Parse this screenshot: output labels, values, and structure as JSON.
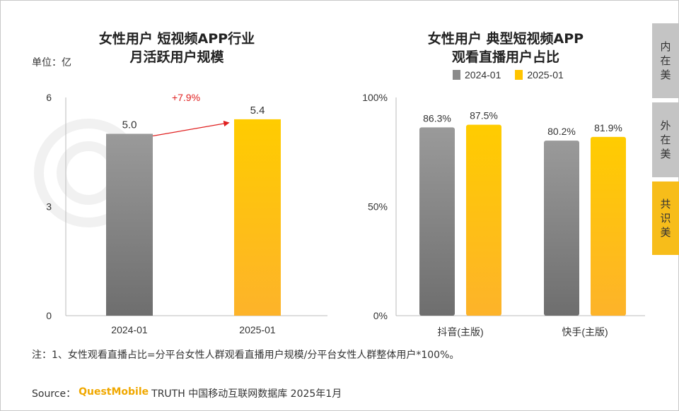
{
  "left_chart": {
    "title_line1": "女性用户 短视频APP行业",
    "title_line2": "月活跃用户规模",
    "unit": "单位：亿",
    "growth_label": "+7.9%"
  },
  "right_chart": {
    "title_line1": "女性用户 典型短视频APP",
    "title_line2": "观看直播用户占比",
    "legend": [
      "2024-01",
      "2025-01"
    ]
  },
  "side_tabs": [
    {
      "label": "内在美"
    },
    {
      "label": "外在美"
    },
    {
      "label": "共识美"
    }
  ],
  "note": "注：1、女性观看直播占比=分平台女性人群观看直播用户规模/分平台女性人群整体用户*100%。",
  "source": {
    "prefix": "Source：",
    "brand": "QuestMobile",
    "rest": "TRUTH 中国移动互联网数据库 2025年1月"
  },
  "colors": {
    "gray": "#8a8a8a",
    "yellow": "#ffc400",
    "arrow": "#e02020"
  },
  "chart_data": [
    {
      "type": "bar",
      "title": "女性用户 短视频APP行业 月活跃用户规模",
      "ylabel": "单位：亿",
      "categories": [
        "2024-01",
        "2025-01"
      ],
      "values": [
        5.0,
        5.4
      ],
      "value_labels": [
        "5.0",
        "5.4"
      ],
      "yticks": [
        "0",
        "3",
        "6"
      ],
      "ylim": [
        0,
        6
      ],
      "annotation": "+7.9%"
    },
    {
      "type": "bar",
      "title": "女性用户 典型短视频APP 观看直播用户占比",
      "categories": [
        "抖音(主版)",
        "快手(主版)"
      ],
      "series": [
        {
          "name": "2024-01",
          "values": [
            86.3,
            80.2
          ],
          "labels": [
            "86.3%",
            "80.2%"
          ]
        },
        {
          "name": "2025-01",
          "values": [
            87.5,
            81.9
          ],
          "labels": [
            "87.5%",
            "81.9%"
          ]
        }
      ],
      "yticks": [
        "0%",
        "50%",
        "100%"
      ],
      "ylim": [
        0,
        100
      ],
      "legend": "top"
    }
  ]
}
